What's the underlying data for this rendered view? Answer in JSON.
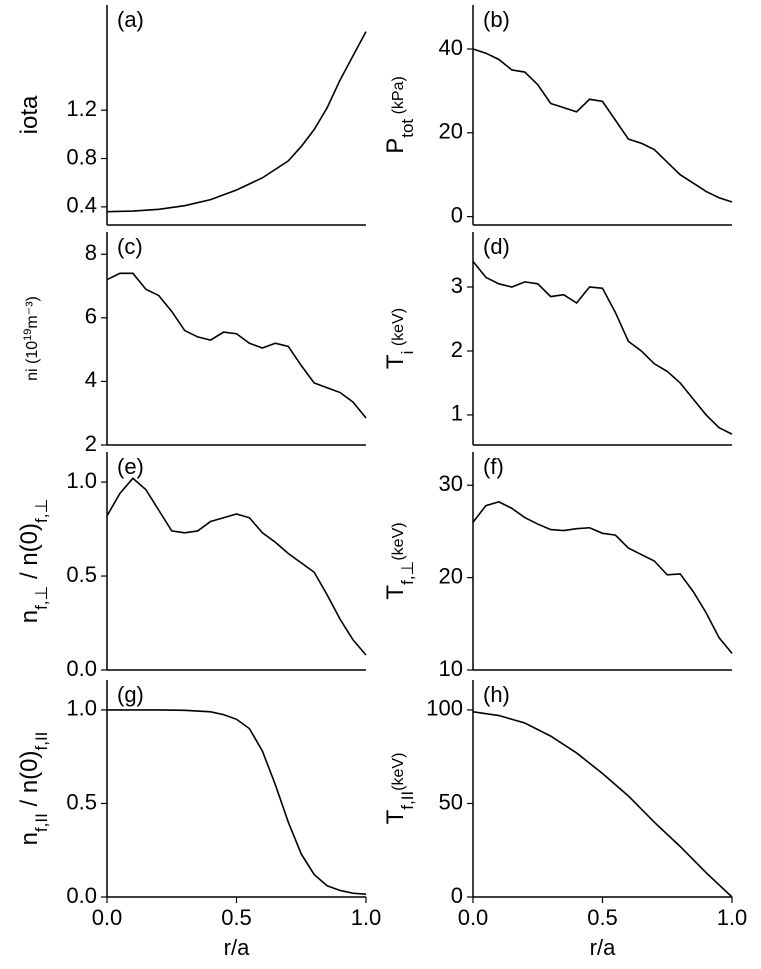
{
  "chart_data": [
    {
      "type": "line",
      "label": "(a)",
      "color": "#000000",
      "ylabel": [
        {
          "text": "iota"
        }
      ],
      "x": [
        0,
        0.1,
        0.2,
        0.3,
        0.4,
        0.5,
        0.6,
        0.7,
        0.75,
        0.8,
        0.85,
        0.9,
        0.95,
        1.0
      ],
      "values": [
        0.36,
        0.365,
        0.38,
        0.41,
        0.46,
        0.54,
        0.64,
        0.78,
        0.9,
        1.04,
        1.22,
        1.45,
        1.65,
        1.85
      ],
      "xlim": [
        0,
        1
      ],
      "ylim": [
        0.25,
        2.07
      ],
      "yticks": [
        0.4,
        0.8,
        1.2
      ]
    },
    {
      "type": "line",
      "label": "(b)",
      "color": "#000000",
      "ylabel": [
        {
          "text": "P"
        },
        {
          "text": "tot",
          "sub": true
        },
        {
          "text": " (kPa)",
          "small": true
        }
      ],
      "x": [
        0,
        0.05,
        0.1,
        0.15,
        0.2,
        0.25,
        0.3,
        0.35,
        0.4,
        0.45,
        0.5,
        0.55,
        0.6,
        0.65,
        0.7,
        0.75,
        0.8,
        0.85,
        0.9,
        0.95,
        1.0
      ],
      "values": [
        40,
        39,
        37.5,
        35,
        34.5,
        31.5,
        27,
        26,
        25,
        28,
        27.5,
        23,
        18.5,
        17.5,
        16,
        13,
        10,
        8,
        6,
        4.5,
        3.5
      ],
      "xlim": [
        0,
        1
      ],
      "ylim": [
        -2,
        50.5
      ],
      "yticks": [
        0,
        20,
        40
      ]
    },
    {
      "type": "line",
      "label": "(c)",
      "color": "#000000",
      "ylabel": [
        {
          "text": "ni (10",
          "small": true
        },
        {
          "text": "19",
          "sup": true,
          "small": true
        },
        {
          "text": "m⁻³)",
          "small": true
        }
      ],
      "x": [
        0,
        0.05,
        0.1,
        0.15,
        0.2,
        0.25,
        0.3,
        0.35,
        0.4,
        0.45,
        0.5,
        0.55,
        0.6,
        0.65,
        0.7,
        0.75,
        0.8,
        0.85,
        0.9,
        0.95,
        1.0
      ],
      "values": [
        7.2,
        7.4,
        7.4,
        6.9,
        6.7,
        6.2,
        5.6,
        5.4,
        5.3,
        5.55,
        5.5,
        5.2,
        5.05,
        5.2,
        5.1,
        4.5,
        3.95,
        3.8,
        3.65,
        3.35,
        2.85
      ],
      "xlim": [
        0,
        1
      ],
      "ylim": [
        2,
        8.7
      ],
      "yticks": [
        2,
        4,
        6,
        8
      ]
    },
    {
      "type": "line",
      "label": "(d)",
      "color": "#000000",
      "ylabel": [
        {
          "text": "T"
        },
        {
          "text": "i",
          "sub": true
        },
        {
          "text": " (keV)",
          "small": true
        }
      ],
      "x": [
        0,
        0.05,
        0.1,
        0.15,
        0.2,
        0.25,
        0.3,
        0.35,
        0.4,
        0.45,
        0.5,
        0.55,
        0.6,
        0.65,
        0.7,
        0.75,
        0.8,
        0.85,
        0.9,
        0.95,
        1.0
      ],
      "values": [
        3.4,
        3.15,
        3.05,
        3.0,
        3.08,
        3.05,
        2.85,
        2.88,
        2.75,
        3.0,
        2.98,
        2.6,
        2.15,
        2.0,
        1.8,
        1.68,
        1.5,
        1.25,
        1.0,
        0.8,
        0.7
      ],
      "xlim": [
        0,
        1
      ],
      "ylim": [
        0.53,
        3.86
      ],
      "yticks": [
        1,
        2,
        3
      ]
    },
    {
      "type": "line",
      "label": "(e)",
      "color": "#000000",
      "ylabel": [
        {
          "text": "n"
        },
        {
          "text": "f,⊥",
          "sub": true
        },
        {
          "text": " / n(0)"
        },
        {
          "text": "f,⊥",
          "sub": true
        }
      ],
      "x": [
        0,
        0.05,
        0.1,
        0.15,
        0.2,
        0.25,
        0.3,
        0.35,
        0.4,
        0.45,
        0.5,
        0.55,
        0.6,
        0.65,
        0.7,
        0.75,
        0.8,
        0.85,
        0.9,
        0.95,
        1.0
      ],
      "values": [
        0.82,
        0.94,
        1.02,
        0.96,
        0.85,
        0.74,
        0.73,
        0.74,
        0.79,
        0.81,
        0.83,
        0.81,
        0.73,
        0.68,
        0.62,
        0.57,
        0.52,
        0.4,
        0.27,
        0.16,
        0.08
      ],
      "xlim": [
        0,
        1
      ],
      "ylim": [
        0,
        1.16
      ],
      "yticks": [
        {
          "value": 0,
          "label": "0.0"
        },
        {
          "value": 0.5,
          "label": "0.5"
        },
        {
          "value": 1,
          "label": "1.0"
        }
      ]
    },
    {
      "type": "line",
      "label": "(f)",
      "color": "#000000",
      "ylabel": [
        {
          "text": "T"
        },
        {
          "text": "f,⊥",
          "sub": true
        },
        {
          "text": "(keV)",
          "small": true
        }
      ],
      "x": [
        0,
        0.05,
        0.1,
        0.15,
        0.2,
        0.25,
        0.3,
        0.35,
        0.4,
        0.45,
        0.5,
        0.55,
        0.6,
        0.65,
        0.7,
        0.75,
        0.8,
        0.85,
        0.9,
        0.95,
        1.0
      ],
      "values": [
        26,
        27.8,
        28.2,
        27.5,
        26.5,
        25.8,
        25.2,
        25.1,
        25.3,
        25.4,
        24.8,
        24.6,
        23.2,
        22.5,
        21.8,
        20.3,
        20.4,
        18.5,
        16.2,
        13.5,
        11.8
      ],
      "xlim": [
        0,
        1
      ],
      "ylim": [
        10,
        33.6
      ],
      "yticks": [
        10,
        20,
        30
      ]
    },
    {
      "type": "line",
      "label": "(g)",
      "color": "#000000",
      "ylabel": [
        {
          "text": "n"
        },
        {
          "text": "f,II",
          "sub": true
        },
        {
          "text": " / n(0)"
        },
        {
          "text": "f,II",
          "sub": true
        }
      ],
      "xlabel": "r/a",
      "x": [
        0,
        0.1,
        0.2,
        0.3,
        0.4,
        0.45,
        0.5,
        0.55,
        0.6,
        0.65,
        0.7,
        0.75,
        0.8,
        0.85,
        0.9,
        0.95,
        1.0
      ],
      "values": [
        1.0,
        1.0,
        1.0,
        0.998,
        0.99,
        0.975,
        0.95,
        0.9,
        0.78,
        0.6,
        0.4,
        0.23,
        0.12,
        0.06,
        0.035,
        0.02,
        0.015
      ],
      "xlim": [
        0,
        1
      ],
      "ylim": [
        0,
        1.16
      ],
      "xticks": [
        {
          "value": 0,
          "label": "0.0"
        },
        {
          "value": 0.5,
          "label": "0.5"
        },
        {
          "value": 1,
          "label": "1.0"
        }
      ],
      "yticks": [
        {
          "value": 0,
          "label": "0.0"
        },
        {
          "value": 0.5,
          "label": "0.5"
        },
        {
          "value": 1,
          "label": "1.0"
        }
      ]
    },
    {
      "type": "line",
      "label": "(h)",
      "color": "#000000",
      "ylabel": [
        {
          "text": "T"
        },
        {
          "text": "f,II",
          "sub": true
        },
        {
          "text": "(keV)",
          "small": true
        }
      ],
      "xlabel": "r/a",
      "x": [
        0,
        0.1,
        0.2,
        0.3,
        0.4,
        0.5,
        0.6,
        0.7,
        0.8,
        0.9,
        1.0
      ],
      "values": [
        99,
        97,
        93,
        86,
        77,
        66,
        54,
        40,
        27,
        13,
        0
      ],
      "xlim": [
        0,
        1
      ],
      "ylim": [
        0,
        116
      ],
      "xticks": [
        {
          "value": 0,
          "label": "0.0"
        },
        {
          "value": 0.5,
          "label": "0.5"
        },
        {
          "value": 1,
          "label": "1.0"
        }
      ],
      "yticks": [
        0,
        50,
        100
      ]
    }
  ]
}
